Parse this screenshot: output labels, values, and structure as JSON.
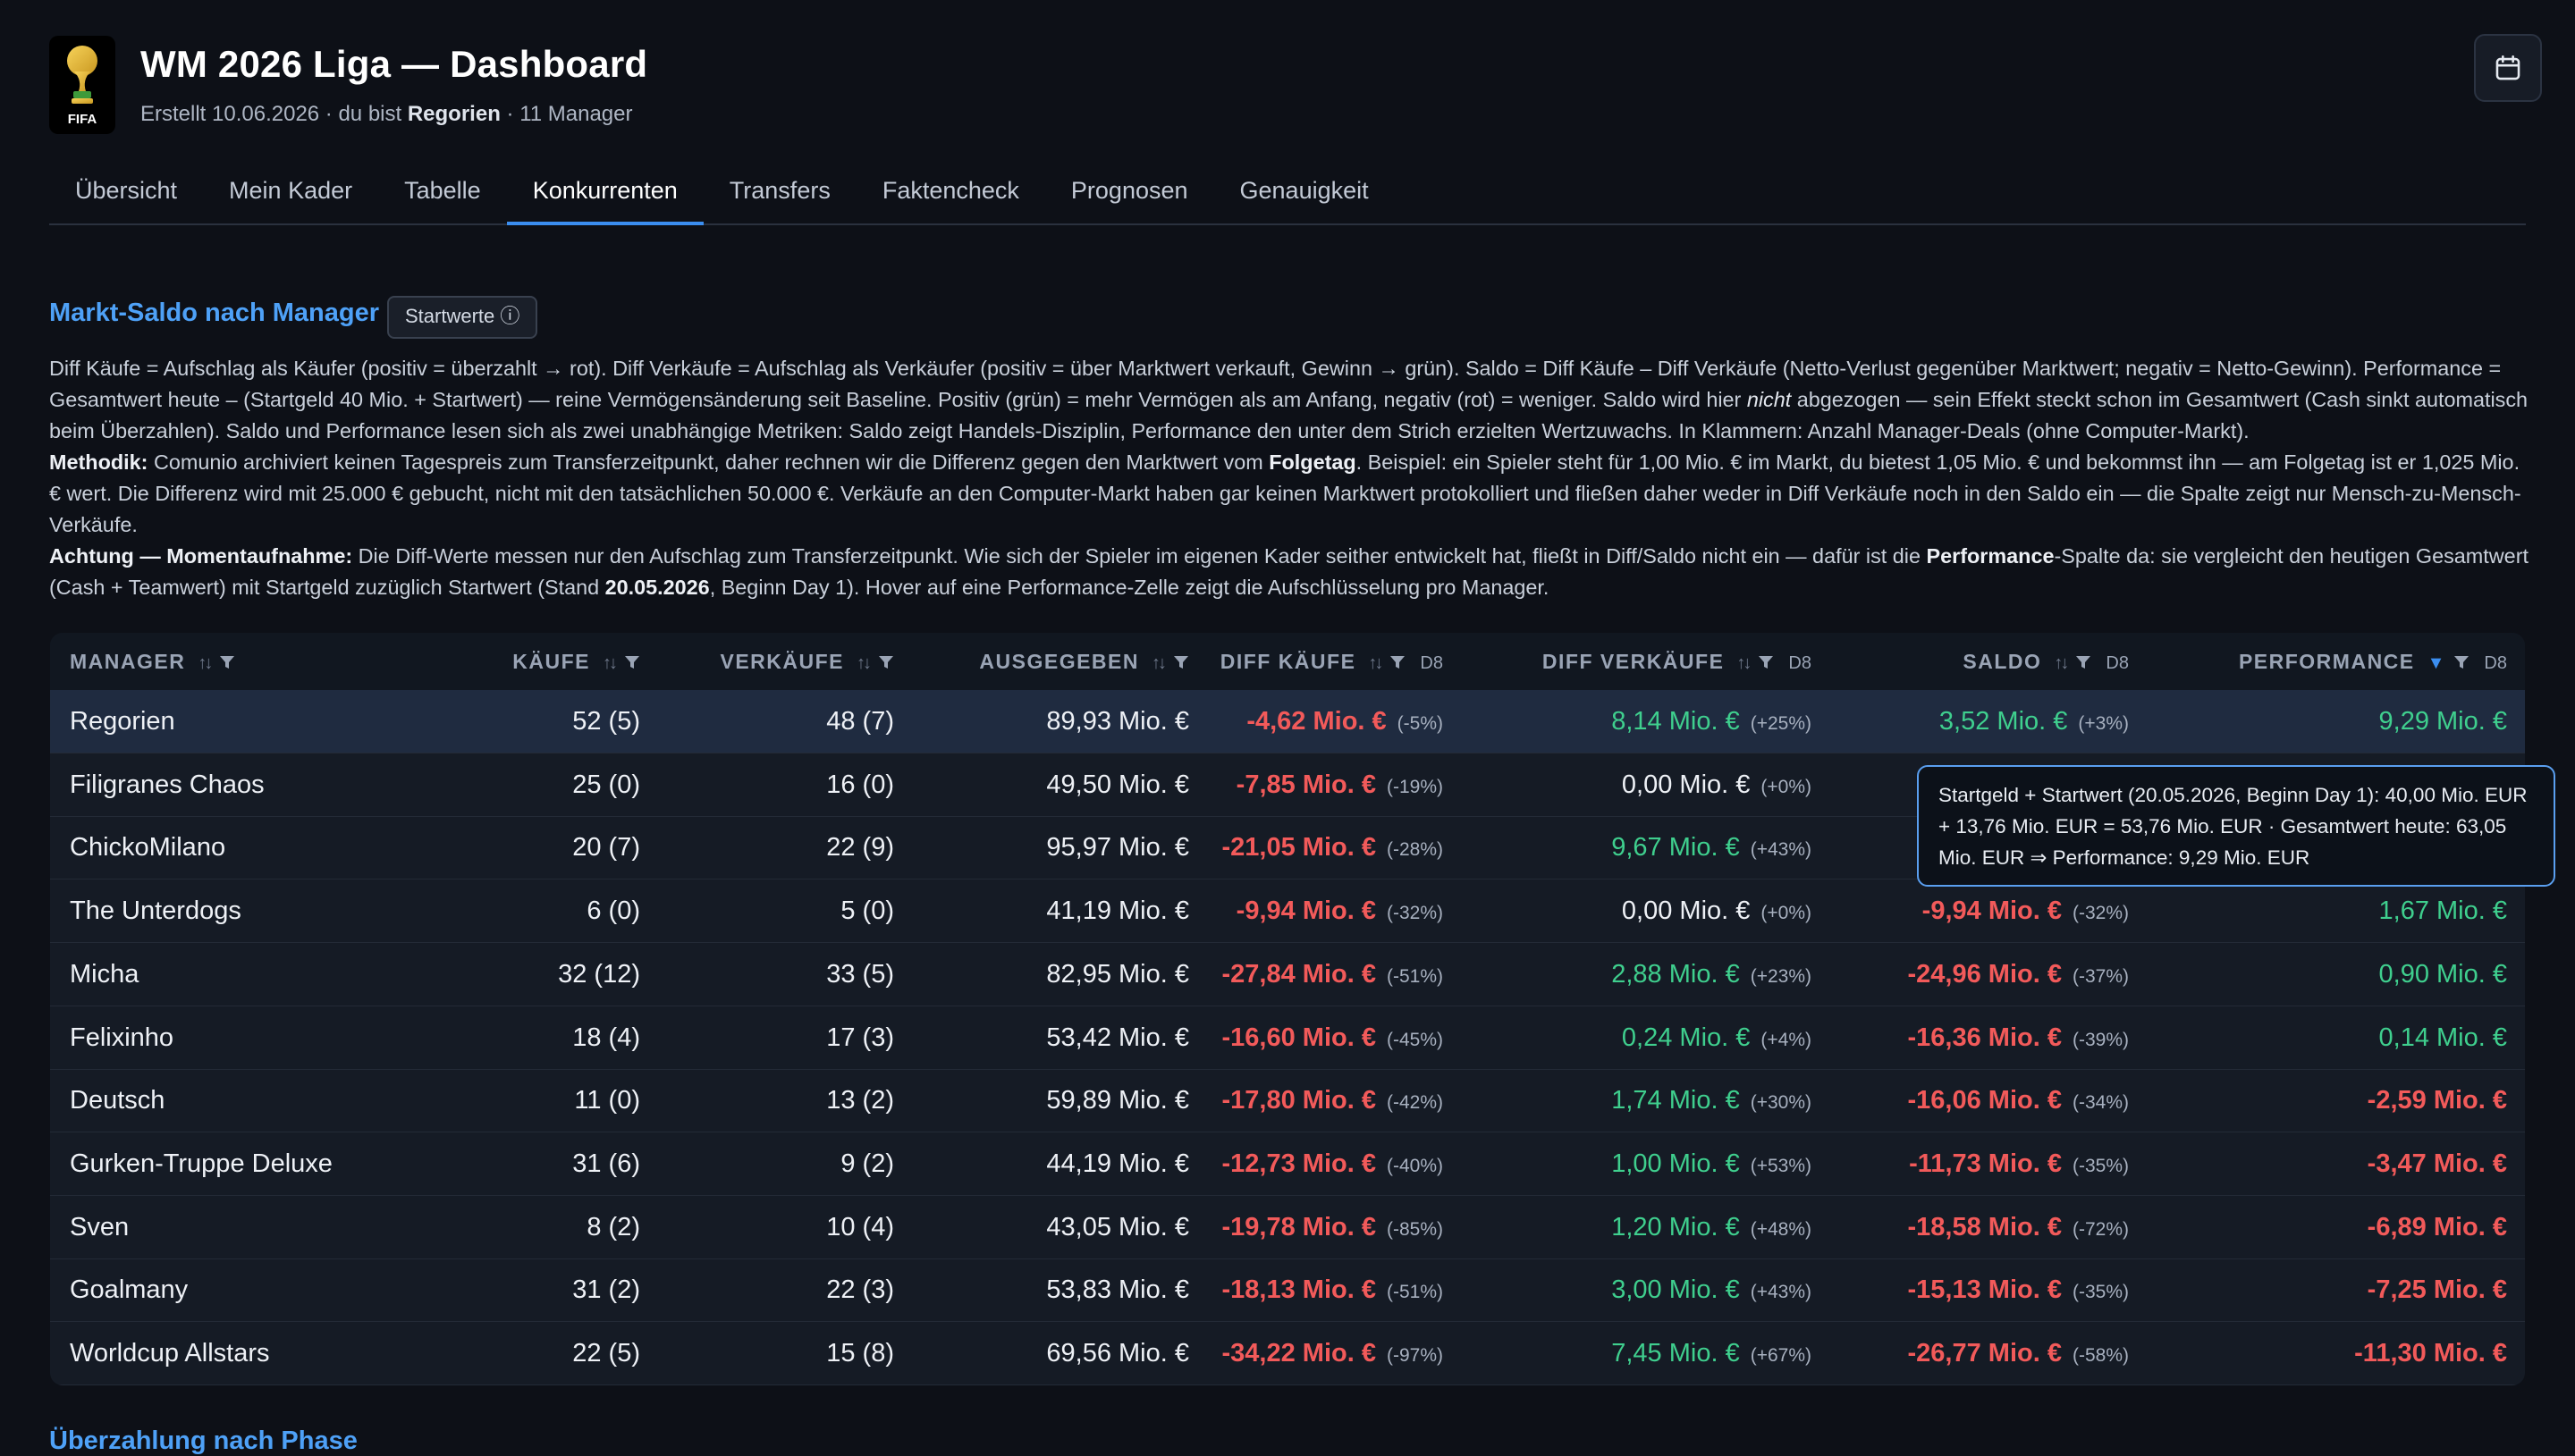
{
  "header": {
    "title": "WM 2026 Liga — Dashboard",
    "subtitle_prefix": "Erstellt 10.06.2026 · du bist",
    "user": "Regorien",
    "subtitle_suffix": "· 11 Manager",
    "logo_text": "FIFA"
  },
  "tabs": [
    {
      "label": "Übersicht",
      "active": false
    },
    {
      "label": "Mein Kader",
      "active": false
    },
    {
      "label": "Tabelle",
      "active": false
    },
    {
      "label": "Konkurrenten",
      "active": true
    },
    {
      "label": "Transfers",
      "active": false
    },
    {
      "label": "Faktencheck",
      "active": false
    },
    {
      "label": "Prognosen",
      "active": false
    },
    {
      "label": "Genauigkeit",
      "active": false
    }
  ],
  "section": {
    "title": "Markt-Saldo nach Manager",
    "badge": "Startwerte ⓘ",
    "p1_a": "Diff Käufe = Aufschlag als Käufer (positiv = überzahlt → rot). Diff Verkäufe = Aufschlag als Verkäufer (positiv = über Marktwert verkauft, Gewinn → grün). Saldo = Diff Käufe – Diff Verkäufe (Netto-Verlust gegenüber Marktwert; negativ = Netto-Gewinn). Performance = Gesamtwert heute – (Startgeld 40 Mio. + Startwert) — reine Vermögensänderung seit Baseline. Positiv (grün) = mehr Vermögen als am Anfang, negativ (rot) = weniger. Saldo wird hier",
    "p1_em": "nicht",
    "p1_b": "abgezogen — sein Effekt steckt schon im Gesamtwert (Cash sinkt automatisch beim Überzahlen). Saldo und Performance lesen sich als zwei unabhängige Metriken: Saldo zeigt Handels-Disziplin, Performance den unter dem Strich erzielten Wertzuwachs. In Klammern: Anzahl Manager-Deals (ohne Computer-Markt).",
    "p2_label": "Methodik:",
    "p2_a": "Comunio archiviert keinen Tagespreis zum Transferzeitpunkt, daher rechnen wir die Differenz gegen den Marktwert vom",
    "p2_strong": "Folgetag",
    "p2_b": ". Beispiel: ein Spieler steht für 1,00 Mio. € im Markt, du bietest 1,05 Mio. € und bekommst ihn — am Folgetag ist er 1,025 Mio. € wert. Die Differenz wird mit 25.000 € gebucht, nicht mit den tatsächlichen 50.000 €. Verkäufe an den Computer-Markt haben gar keinen Marktwert protokolliert und fließen daher weder in Diff Verkäufe noch in den Saldo ein — die Spalte zeigt nur Mensch-zu-Mensch-Verkäufe.",
    "p3_label": "Achtung — Momentaufnahme:",
    "p3_a": "Die Diff-Werte messen nur den Aufschlag zum Transferzeitpunkt. Wie sich der Spieler im eigenen Kader seither entwickelt hat, fließt in Diff/Saldo nicht ein — dafür ist die",
    "p3_strong1": "Performance",
    "p3_b": "-Spalte da: sie vergleicht den heutigen Gesamtwert (Cash + Teamwert) mit Startgeld zuzüglich Startwert (Stand",
    "p3_strong2": "20.05.2026",
    "p3_c": ", Beginn Day 1). Hover auf eine Performance-Zelle zeigt die Aufschlüsselung pro Manager."
  },
  "table": {
    "headers": {
      "manager": "MANAGER",
      "kaeufe": "KÄUFE",
      "verkaeufe": "VERKÄUFE",
      "ausgegeben": "AUSGEGEBEN",
      "diff_kaeufe": "DIFF KÄUFE",
      "diff_verkaeufe": "DIFF VERKÄUFE",
      "saldo": "SALDO",
      "performance": "PERFORMANCE",
      "d8": "D8"
    },
    "rows": [
      {
        "manager": "Regorien",
        "kaeufe": "52 (5)",
        "verkaeufe": "48 (7)",
        "ausgegeben": "89,93 Mio. €",
        "diff_k": "-4,62 Mio. €",
        "diff_k_pct": "(-5%)",
        "diff_k_tone": "red",
        "diff_v": "8,14 Mio. €",
        "diff_v_pct": "(+25%)",
        "diff_v_tone": "green",
        "saldo": "3,52 Mio. €",
        "saldo_pct": "(+3%)",
        "saldo_tone": "green",
        "perf": "9,29 Mio. €",
        "perf_tone": "green",
        "highlight": true
      },
      {
        "manager": "Filigranes Chaos",
        "kaeufe": "25 (0)",
        "verkaeufe": "16 (0)",
        "ausgegeben": "49,50 Mio. €",
        "diff_k": "-7,85 Mio. €",
        "diff_k_pct": "(-19%)",
        "diff_k_tone": "red",
        "diff_v": "0,00 Mio. €",
        "diff_v_pct": "(+0%)",
        "diff_v_tone": "neutral",
        "saldo": "",
        "saldo_pct": "",
        "saldo_tone": "red",
        "perf": "",
        "perf_tone": "green"
      },
      {
        "manager": "ChickoMilano",
        "kaeufe": "20 (7)",
        "verkaeufe": "22 (9)",
        "ausgegeben": "95,97 Mio. €",
        "diff_k": "-21,05 Mio. €",
        "diff_k_pct": "(-28%)",
        "diff_k_tone": "red",
        "diff_v": "9,67 Mio. €",
        "diff_v_pct": "(+43%)",
        "diff_v_tone": "green",
        "saldo": "",
        "saldo_pct": "",
        "saldo_tone": "red",
        "perf": "",
        "perf_tone": "green"
      },
      {
        "manager": "The Unterdogs",
        "kaeufe": "6 (0)",
        "verkaeufe": "5 (0)",
        "ausgegeben": "41,19 Mio. €",
        "diff_k": "-9,94 Mio. €",
        "diff_k_pct": "(-32%)",
        "diff_k_tone": "red",
        "diff_v": "0,00 Mio. €",
        "diff_v_pct": "(+0%)",
        "diff_v_tone": "neutral",
        "saldo": "-9,94 Mio. €",
        "saldo_pct": "(-32%)",
        "saldo_tone": "red",
        "perf": "1,67 Mio. €",
        "perf_tone": "green"
      },
      {
        "manager": "Micha",
        "kaeufe": "32 (12)",
        "verkaeufe": "33 (5)",
        "ausgegeben": "82,95 Mio. €",
        "diff_k": "-27,84 Mio. €",
        "diff_k_pct": "(-51%)",
        "diff_k_tone": "red",
        "diff_v": "2,88 Mio. €",
        "diff_v_pct": "(+23%)",
        "diff_v_tone": "green",
        "saldo": "-24,96 Mio. €",
        "saldo_pct": "(-37%)",
        "saldo_tone": "red",
        "perf": "0,90 Mio. €",
        "perf_tone": "green"
      },
      {
        "manager": "Felixinho",
        "kaeufe": "18 (4)",
        "verkaeufe": "17 (3)",
        "ausgegeben": "53,42 Mio. €",
        "diff_k": "-16,60 Mio. €",
        "diff_k_pct": "(-45%)",
        "diff_k_tone": "red",
        "diff_v": "0,24 Mio. €",
        "diff_v_pct": "(+4%)",
        "diff_v_tone": "green",
        "saldo": "-16,36 Mio. €",
        "saldo_pct": "(-39%)",
        "saldo_tone": "red",
        "perf": "0,14 Mio. €",
        "perf_tone": "green"
      },
      {
        "manager": "Deutsch",
        "kaeufe": "11 (0)",
        "verkaeufe": "13 (2)",
        "ausgegeben": "59,89 Mio. €",
        "diff_k": "-17,80 Mio. €",
        "diff_k_pct": "(-42%)",
        "diff_k_tone": "red",
        "diff_v": "1,74 Mio. €",
        "diff_v_pct": "(+30%)",
        "diff_v_tone": "green",
        "saldo": "-16,06 Mio. €",
        "saldo_pct": "(-34%)",
        "saldo_tone": "red",
        "perf": "-2,59 Mio. €",
        "perf_tone": "red"
      },
      {
        "manager": "Gurken-Truppe Deluxe",
        "kaeufe": "31 (6)",
        "verkaeufe": "9 (2)",
        "ausgegeben": "44,19 Mio. €",
        "diff_k": "-12,73 Mio. €",
        "diff_k_pct": "(-40%)",
        "diff_k_tone": "red",
        "diff_v": "1,00 Mio. €",
        "diff_v_pct": "(+53%)",
        "diff_v_tone": "green",
        "saldo": "-11,73 Mio. €",
        "saldo_pct": "(-35%)",
        "saldo_tone": "red",
        "perf": "-3,47 Mio. €",
        "perf_tone": "red"
      },
      {
        "manager": "Sven",
        "kaeufe": "8 (2)",
        "verkaeufe": "10 (4)",
        "ausgegeben": "43,05 Mio. €",
        "diff_k": "-19,78 Mio. €",
        "diff_k_pct": "(-85%)",
        "diff_k_tone": "red",
        "diff_v": "1,20 Mio. €",
        "diff_v_pct": "(+48%)",
        "diff_v_tone": "green",
        "saldo": "-18,58 Mio. €",
        "saldo_pct": "(-72%)",
        "saldo_tone": "red",
        "perf": "-6,89 Mio. €",
        "perf_tone": "red"
      },
      {
        "manager": "Goalmany",
        "kaeufe": "31 (2)",
        "verkaeufe": "22 (3)",
        "ausgegeben": "53,83 Mio. €",
        "diff_k": "-18,13 Mio. €",
        "diff_k_pct": "(-51%)",
        "diff_k_tone": "red",
        "diff_v": "3,00 Mio. €",
        "diff_v_pct": "(+43%)",
        "diff_v_tone": "green",
        "saldo": "-15,13 Mio. €",
        "saldo_pct": "(-35%)",
        "saldo_tone": "red",
        "perf": "-7,25 Mio. €",
        "perf_tone": "red"
      },
      {
        "manager": "Worldcup Allstars",
        "kaeufe": "22 (5)",
        "verkaeufe": "15 (8)",
        "ausgegeben": "69,56 Mio. €",
        "diff_k": "-34,22 Mio. €",
        "diff_k_pct": "(-97%)",
        "diff_k_tone": "red",
        "diff_v": "7,45 Mio. €",
        "diff_v_pct": "(+67%)",
        "diff_v_tone": "green",
        "saldo": "-26,77 Mio. €",
        "saldo_pct": "(-58%)",
        "saldo_tone": "red",
        "perf": "-11,30 Mio. €",
        "perf_tone": "red"
      }
    ]
  },
  "tooltip": {
    "text": "Startgeld + Startwert (20.05.2026, Beginn Day 1): 40,00 Mio. EUR + 13,76 Mio. EUR = 53,76 Mio. EUR · Gesamtwert heute: 63,05 Mio. EUR ⇒ Performance: 9,29 Mio. EUR"
  },
  "next_section": {
    "title": "Überzahlung nach Phase"
  },
  "icons": {
    "calendar": "calendar-icon",
    "sort": "sort-icon",
    "filter": "filter-icon",
    "trophy": "trophy-icon"
  },
  "colors": {
    "accent": "#4ea1f7",
    "negative": "#f25a5a",
    "positive": "#3fcf8e",
    "background": "#0d1017"
  }
}
